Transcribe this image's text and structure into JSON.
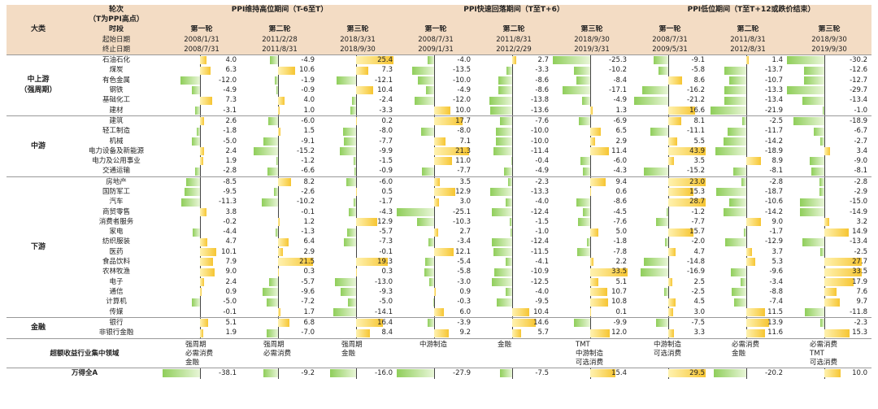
{
  "header": {
    "corner_top": "轮次",
    "corner_sub": "（T为PPI高点）",
    "category_label": "大类",
    "period_label": "时段",
    "start_label": "起始日期",
    "end_label": "终止日期",
    "phases": [
      {
        "title": "PPI维持高位期间（T-6至T）"
      },
      {
        "title": "PPI快速回落期间（T至T+6）"
      },
      {
        "title": "PPI低位期间（T至T+12或跌价结束）"
      }
    ],
    "rounds": [
      {
        "label": "第一轮",
        "start": "2008/1/31",
        "end": "2008/7/31"
      },
      {
        "label": "第二轮",
        "start": "2011/2/28",
        "end": "2011/8/31"
      },
      {
        "label": "第三轮",
        "start": "2018/3/31",
        "end": "2018/9/30"
      },
      {
        "label": "第一轮",
        "start": "2008/7/31",
        "end": "2009/1/31"
      },
      {
        "label": "第二轮",
        "start": "2011/8/31",
        "end": "2012/2/29"
      },
      {
        "label": "第三轮",
        "start": "2018/9/30",
        "end": "2019/3/31"
      },
      {
        "label": "第一轮",
        "start": "2008/7/31",
        "end": "2009/5/31"
      },
      {
        "label": "第二轮",
        "start": "2011/8/31",
        "end": "2012/8/31"
      },
      {
        "label": "第三轮",
        "start": "2018/9/30",
        "end": "2019/9/30"
      }
    ]
  },
  "groups": [
    {
      "category": "中上游\n（强周期）",
      "rows": [
        {
          "name": "石油石化",
          "v": [
            4.0,
            -4.9,
            25.4,
            -4.0,
            2.7,
            -25.3,
            -9.1,
            1.4,
            -30.2
          ]
        },
        {
          "name": "煤炭",
          "v": [
            6.3,
            10.6,
            7.3,
            -13.5,
            -3.3,
            -10.2,
            -5.8,
            -13.7,
            -12.6
          ]
        },
        {
          "name": "有色金属",
          "v": [
            -12.0,
            -1.9,
            -12.1,
            -10.0,
            -8.6,
            -8.4,
            8.6,
            -10.7,
            -12.7
          ]
        },
        {
          "name": "钢铁",
          "v": [
            -4.9,
            -0.9,
            10.4,
            -4.9,
            -8.6,
            -17.1,
            -16.2,
            -13.3,
            -29.7
          ]
        },
        {
          "name": "基础化工",
          "v": [
            7.3,
            4.0,
            -2.4,
            -12.0,
            -13.8,
            -4.9,
            -21.2,
            -13.4,
            -13.4
          ]
        },
        {
          "name": "建材",
          "v": [
            -3.1,
            1.0,
            -3.3,
            10.0,
            -13.6,
            1.3,
            16.6,
            -21.9,
            -1.0
          ]
        }
      ]
    },
    {
      "category": "中游",
      "rows": [
        {
          "name": "建筑",
          "v": [
            2.6,
            -6.0,
            0.2,
            17.7,
            -7.6,
            -6.9,
            8.1,
            -2.5,
            -18.9
          ]
        },
        {
          "name": "轻工制造",
          "v": [
            -1.8,
            1.5,
            -8.0,
            -8.0,
            -10.0,
            6.5,
            -11.1,
            -11.7,
            -6.7
          ]
        },
        {
          "name": "机械",
          "v": [
            -5.0,
            -9.1,
            -7.7,
            7.1,
            -10.0,
            2.9,
            5.5,
            -14.2,
            -2.7
          ]
        },
        {
          "name": "电力设备及新能源",
          "v": [
            2.4,
            -15.2,
            -9.9,
            21.3,
            -11.4,
            11.4,
            43.9,
            -18.9,
            3.4
          ]
        },
        {
          "name": "电力及公用事业",
          "v": [
            1.9,
            -1.2,
            -1.5,
            11.0,
            -0.4,
            -6.0,
            3.5,
            8.9,
            -9.0
          ]
        },
        {
          "name": "交通运输",
          "v": [
            -2.8,
            -6.6,
            -0.9,
            -7.7,
            -4.9,
            -4.3,
            -15.2,
            -8.1,
            -8.1
          ]
        }
      ]
    },
    {
      "category": "下游",
      "rows": [
        {
          "name": "房地产",
          "v": [
            -8.5,
            8.2,
            -6.0,
            3.5,
            -2.3,
            9.4,
            23.0,
            -2.8,
            -2.8
          ]
        },
        {
          "name": "国防军工",
          "v": [
            -9.5,
            -2.6,
            0.5,
            12.9,
            -13.3,
            0.6,
            15.3,
            -18.7,
            -2.9
          ]
        },
        {
          "name": "汽车",
          "v": [
            -11.3,
            -10.2,
            -1.7,
            3.0,
            -4.0,
            -8.6,
            28.7,
            -10.6,
            -15.0
          ]
        },
        {
          "name": "商贸零售",
          "v": [
            3.8,
            -0.1,
            -4.3,
            -25.1,
            -12.4,
            -4.5,
            -1.2,
            -14.2,
            -14.9
          ]
        },
        {
          "name": "消费者服务",
          "v": [
            -0.2,
            1.2,
            12.9,
            -10.3,
            -1.5,
            -7.6,
            -7.7,
            9.0,
            3.2
          ]
        },
        {
          "name": "家电",
          "v": [
            -4.4,
            -1.3,
            -5.7,
            2.7,
            -1.0,
            5.0,
            15.7,
            -1.7,
            14.9
          ]
        },
        {
          "name": "纺织服装",
          "v": [
            4.7,
            6.4,
            -7.3,
            -3.4,
            -12.4,
            -1.8,
            -2.0,
            -12.9,
            -13.4
          ]
        },
        {
          "name": "医药",
          "v": [
            10.1,
            2.9,
            -0.1,
            12.1,
            -11.5,
            -7.8,
            4.7,
            3.7,
            -2.5
          ]
        },
        {
          "name": "食品饮料",
          "v": [
            7.9,
            21.5,
            19.3,
            -5.4,
            -4.1,
            2.2,
            -14.8,
            5.3,
            27.7
          ]
        },
        {
          "name": "农林牧渔",
          "v": [
            9.0,
            0.3,
            0.3,
            -5.8,
            -10.9,
            33.5,
            -16.9,
            -9.6,
            33.5
          ]
        },
        {
          "name": "电子",
          "v": [
            2.4,
            -5.7,
            -13.0,
            -3.0,
            -12.5,
            5.1,
            2.5,
            -3.4,
            17.9
          ]
        },
        {
          "name": "通信",
          "v": [
            0.9,
            -9.6,
            -9.3,
            0.9,
            -4.0,
            10.7,
            -2.5,
            -8.8,
            7.6
          ]
        },
        {
          "name": "计算机",
          "v": [
            -5.0,
            -7.2,
            -5.0,
            -0.3,
            -9.5,
            10.8,
            4.5,
            -7.4,
            9.7
          ]
        },
        {
          "name": "传媒",
          "v": [
            -0.1,
            1.7,
            -14.1,
            6.0,
            10.4,
            0.1,
            3.0,
            11.5,
            -11.8
          ]
        }
      ]
    },
    {
      "category": "金融",
      "rows": [
        {
          "name": "银行",
          "v": [
            5.1,
            6.8,
            16.4,
            -3.9,
            14.6,
            -9.9,
            -7.5,
            13.9,
            -2.3
          ]
        },
        {
          "name": "非银行金融",
          "v": [
            1.9,
            -7.0,
            8.4,
            9.2,
            5.7,
            12.0,
            3.3,
            11.6,
            15.3
          ]
        }
      ]
    }
  ],
  "summary": {
    "label": "超额收益行业集中领域",
    "cells": [
      "强周期\n必需消费\n金融",
      "强周期\n必需消费",
      "强周期\n金融",
      "中游制造",
      "金融",
      "TMT\n中游制造\n可选消费",
      "中游制造\n可选消费",
      "必需消费\n金融",
      "必需消费\nTMT\n可选消费"
    ]
  },
  "footer": {
    "label": "万得全A",
    "v": [
      -38.1,
      -9.2,
      -16.0,
      -27.9,
      -7.5,
      15.4,
      29.5,
      -20.2,
      10.0
    ]
  },
  "colors": {
    "positive": "#f6c532",
    "negative": "#8fce5a",
    "header_bg": "#f3dcc4"
  }
}
